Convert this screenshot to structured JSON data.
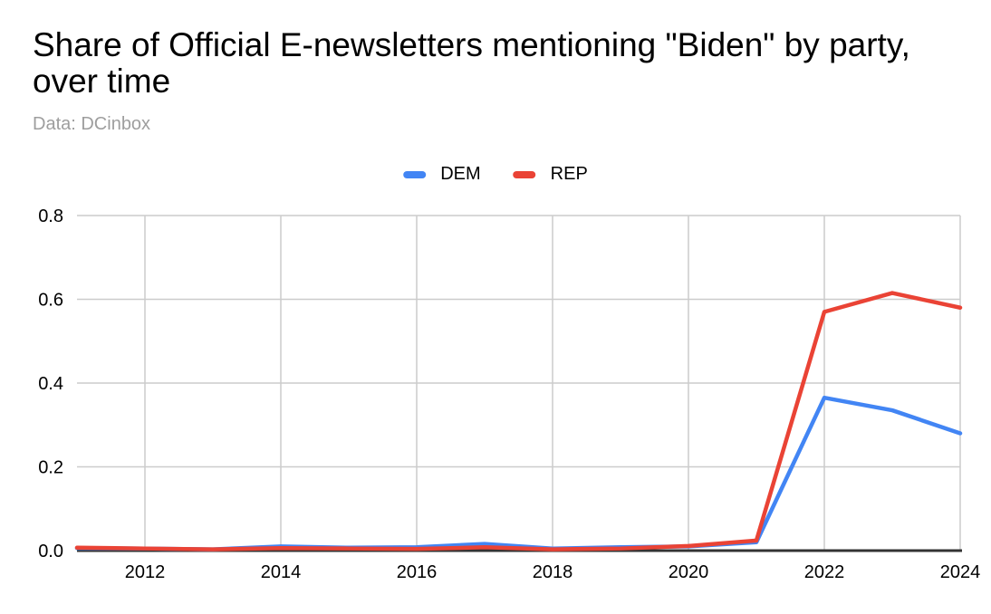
{
  "chart_data": {
    "type": "line",
    "title": "Share of Official E-newsletters mentioning \"Biden\" by party, over time",
    "subtitle": "Data: DCinbox",
    "x": [
      2011,
      2012,
      2013,
      2014,
      2015,
      2016,
      2017,
      2018,
      2019,
      2020,
      2021,
      2022,
      2023,
      2024
    ],
    "series": [
      {
        "name": "DEM",
        "color": "#4285F4",
        "values": [
          0.006,
          0.005,
          0.003,
          0.01,
          0.007,
          0.008,
          0.016,
          0.005,
          0.008,
          0.01,
          0.02,
          0.365,
          0.335,
          0.28
        ]
      },
      {
        "name": "REP",
        "color": "#EA4335",
        "values": [
          0.007,
          0.005,
          0.003,
          0.006,
          0.005,
          0.004,
          0.008,
          0.003,
          0.005,
          0.011,
          0.024,
          0.57,
          0.615,
          0.58
        ]
      }
    ],
    "xlim": [
      2011,
      2024
    ],
    "ylim": [
      0,
      0.8
    ],
    "yticks": [
      0,
      0.2,
      0.4,
      0.6,
      0.8
    ],
    "ytick_labels": [
      "0.0",
      "0.2",
      "0.4",
      "0.6",
      "0.8"
    ],
    "xticks": [
      2012,
      2014,
      2016,
      2018,
      2020,
      2022,
      2024
    ],
    "grid": true,
    "legend_position": "top",
    "gridline_color": "#cccccc",
    "axis_color": "#333333",
    "tick_label_color": "#000000",
    "subtitle_color": "#9e9e9e",
    "background_color": "#ffffff"
  },
  "legend": [
    {
      "label": "DEM",
      "color": "#4285F4"
    },
    {
      "label": "REP",
      "color": "#EA4335"
    }
  ]
}
